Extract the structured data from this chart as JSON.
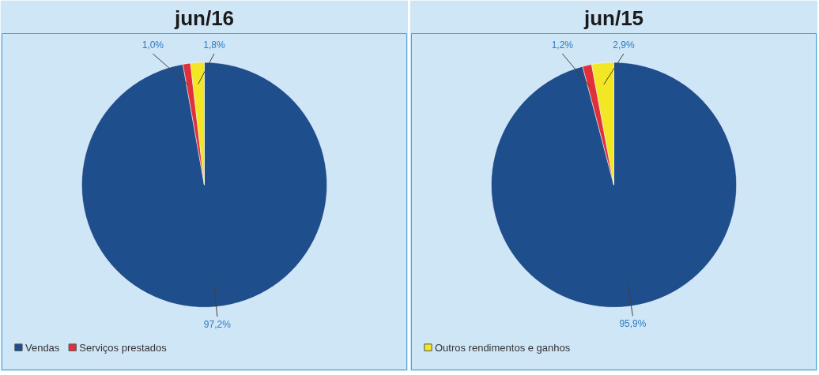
{
  "chart_data": [
    {
      "type": "pie",
      "title": "jun/16",
      "categories": [
        "Vendas",
        "Serviços prestados",
        null
      ],
      "values": [
        97.2,
        1.0,
        1.8
      ],
      "colors": [
        "#1f4e8c",
        "#e0303a",
        "#f2e625"
      ],
      "value_labels": [
        "97,2%",
        "1,0%",
        "1,8%"
      ],
      "legend": "bottom left"
    },
    {
      "type": "pie",
      "title": "jun/15",
      "categories": [
        null,
        null,
        "Outros rendimentos e ganhos"
      ],
      "values": [
        95.9,
        1.2,
        2.9
      ],
      "colors": [
        "#1f4e8c",
        "#e0303a",
        "#f2e625"
      ],
      "value_labels": [
        "95,9%",
        "1,2%",
        "2,9%"
      ],
      "legend": "bottom left"
    }
  ]
}
